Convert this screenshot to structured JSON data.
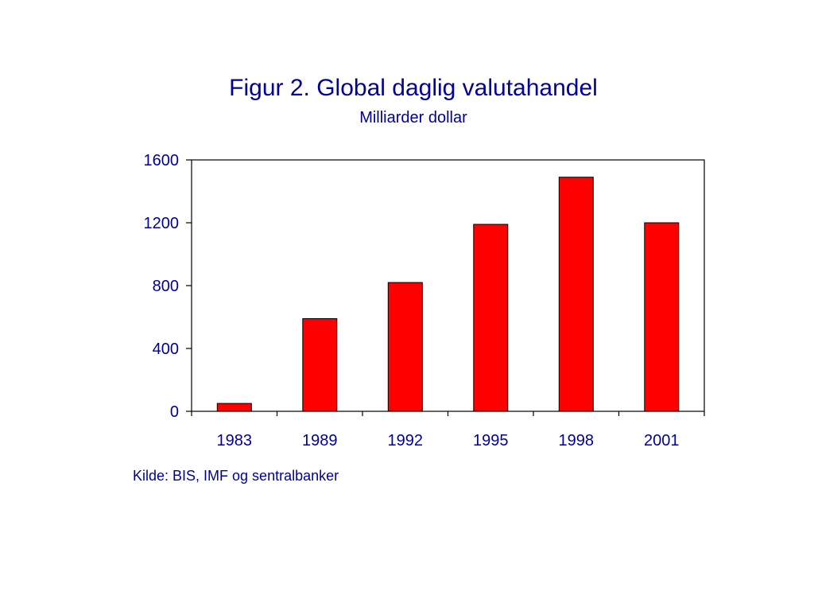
{
  "chart_data": {
    "type": "bar",
    "title": "Figur 2. Global daglig valutahandel",
    "subtitle": "Milliarder dollar",
    "xlabel": "",
    "ylabel": "",
    "categories": [
      "1983",
      "1989",
      "1992",
      "1995",
      "1998",
      "2001"
    ],
    "values": [
      50,
      590,
      820,
      1190,
      1490,
      1200
    ],
    "ylim": [
      0,
      1600
    ],
    "yticks": [
      "0",
      "400",
      "800",
      "1200",
      "1600"
    ],
    "grid": false,
    "legend": "none",
    "bar_color": "#ff0000",
    "text_color": "#000099"
  },
  "source": "Kilde: BIS, IMF og sentralbanker"
}
